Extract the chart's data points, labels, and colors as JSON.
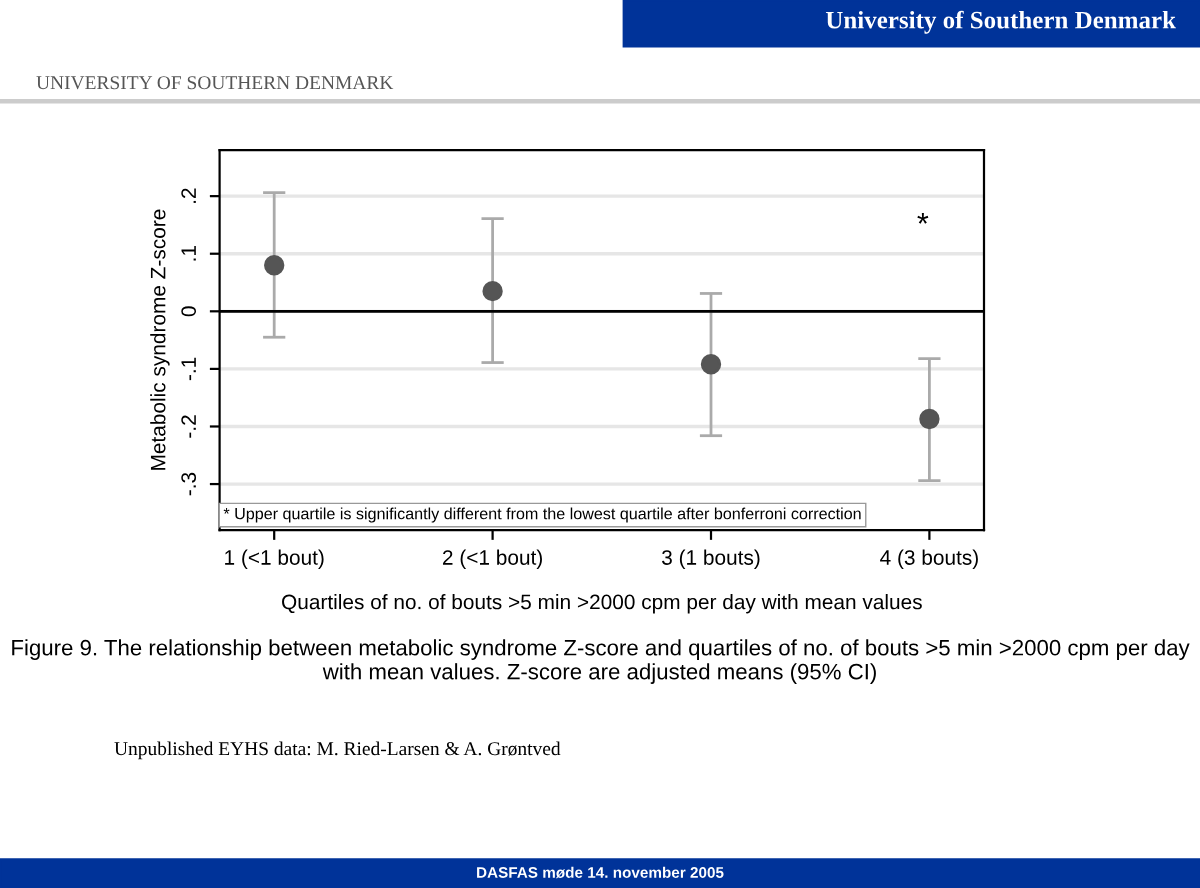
{
  "chart_data": {
    "type": "scatter",
    "ylabel": "Metabolic syndrome Z-score",
    "xlabel": "Quartiles of no. of bouts >5 min >2000 cpm per day with mean values",
    "categories": [
      "1 (<1 bout)",
      "2 (<1 bout)",
      "3 (1 bouts)",
      "4 (3 bouts)"
    ],
    "series": [
      {
        "color": "#555555",
        "values": [
          0.08,
          0.035,
          -0.092,
          -0.187
        ],
        "errors": [
          [
            -0.045,
            0.206
          ],
          [
            -0.089,
            0.161
          ],
          [
            -0.216,
            0.031
          ],
          [
            -0.294,
            -0.082
          ]
        ]
      }
    ],
    "ylim": [
      -0.38,
      0.28
    ],
    "yticks": [
      {
        "value": -0.3,
        "label": "-.3"
      },
      {
        "value": -0.2,
        "label": "-.2"
      },
      {
        "value": -0.1,
        "label": "-.1"
      },
      0,
      {
        "value": 0.1,
        "label": ".1"
      },
      {
        "value": 0.2,
        "label": ".2"
      }
    ],
    "ref_lines": [
      {
        "axis": "y",
        "value": 0,
        "color": "#000000"
      }
    ],
    "grid": "y",
    "marker": "circle",
    "legend": false,
    "annotations": [
      "*",
      "* Upper quartile is significantly different from the lowest quartile after bonferroni correction",
      "University of Southern Denmark",
      "UNIVERSITY OF SOUTHERN DENMARK",
      "Figure 9. The relationship between metabolic syndrome Z-score and quartiles of no. of bouts >5 min >2000 cpm per day with mean values. Z-score are adjusted means (95% CI)",
      "Unpublished EYHS data: M. Ried-Larsen & A. Grøntved",
      "DASFAS møde 14. november 2005"
    ]
  }
}
